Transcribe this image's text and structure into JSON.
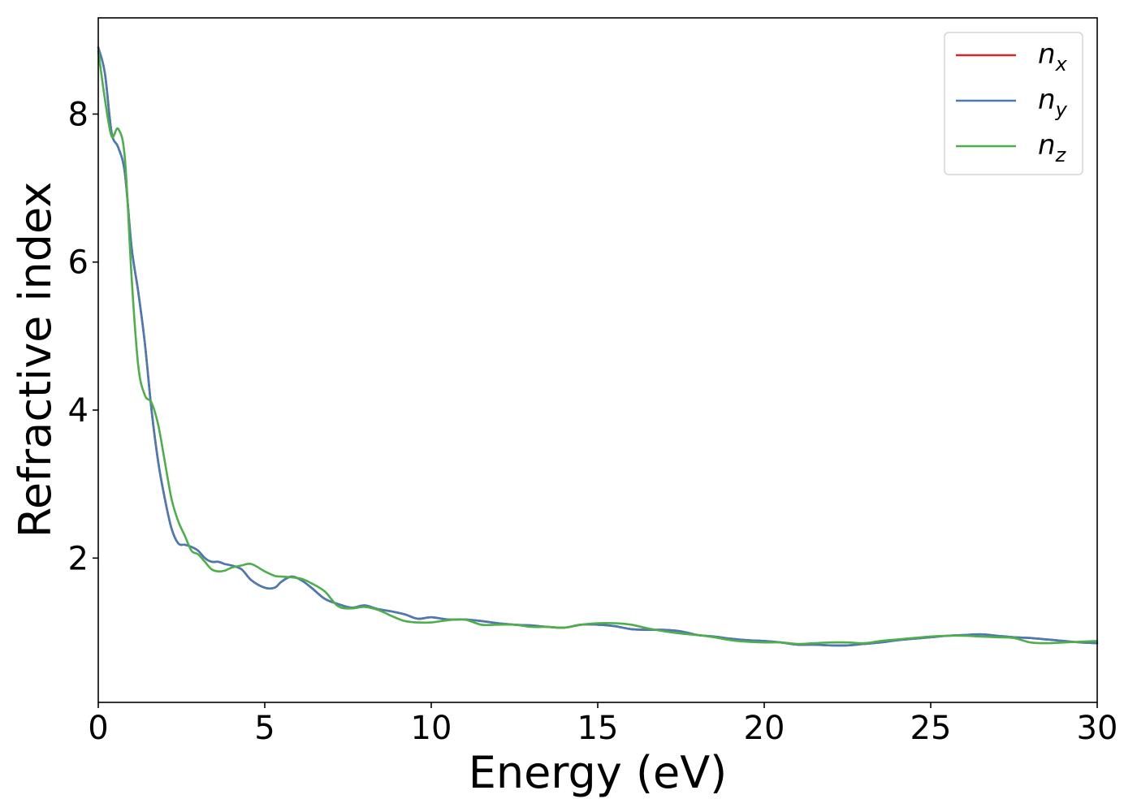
{
  "chart_data": {
    "type": "line",
    "xlabel": "Energy (eV)",
    "ylabel": "Refractive index",
    "xlim": [
      0,
      30
    ],
    "ylim": [
      0.05,
      9.3
    ],
    "xticks": [
      0,
      5,
      10,
      15,
      20,
      25,
      30
    ],
    "yticks": [
      2,
      4,
      6,
      8
    ],
    "grid": false,
    "legend_position": "top-right",
    "series": [
      {
        "name": "n_x",
        "legend_base": "n",
        "legend_sub": "x",
        "color": "#d62728",
        "x": [
          0,
          0.2,
          0.4,
          0.6,
          0.8,
          1.0,
          1.2,
          1.4,
          1.6,
          1.8,
          2.0,
          2.2,
          2.4,
          2.6,
          2.8,
          3.0,
          3.2,
          3.4,
          3.6,
          3.8,
          4.0,
          4.3,
          4.6,
          5.0,
          5.3,
          5.5,
          5.8,
          6.1,
          6.4,
          6.8,
          7.2,
          7.6,
          8.0,
          8.4,
          8.8,
          9.2,
          9.6,
          10.0,
          10.5,
          11.0,
          11.5,
          12.0,
          12.5,
          13.0,
          13.5,
          14.0,
          14.5,
          15.0,
          15.5,
          16.0,
          16.5,
          17.0,
          17.5,
          18.0,
          18.5,
          19.0,
          19.5,
          20.0,
          20.5,
          21.0,
          21.5,
          22.0,
          22.5,
          23.0,
          23.5,
          24.0,
          24.5,
          25.0,
          25.5,
          26.0,
          26.5,
          27.0,
          27.5,
          28.0,
          28.5,
          29.0,
          29.5,
          30.0
        ],
        "y": [
          8.9,
          8.55,
          7.75,
          7.55,
          7.2,
          6.2,
          5.6,
          4.9,
          4.0,
          3.3,
          2.8,
          2.4,
          2.2,
          2.18,
          2.15,
          2.1,
          2.0,
          1.95,
          1.95,
          1.92,
          1.9,
          1.85,
          1.7,
          1.6,
          1.6,
          1.68,
          1.75,
          1.7,
          1.6,
          1.45,
          1.38,
          1.33,
          1.36,
          1.31,
          1.28,
          1.24,
          1.18,
          1.2,
          1.17,
          1.17,
          1.15,
          1.12,
          1.1,
          1.09,
          1.07,
          1.06,
          1.1,
          1.1,
          1.08,
          1.04,
          1.03,
          1.03,
          1.01,
          0.96,
          0.94,
          0.91,
          0.89,
          0.88,
          0.86,
          0.83,
          0.83,
          0.82,
          0.82,
          0.84,
          0.86,
          0.89,
          0.91,
          0.93,
          0.95,
          0.96,
          0.97,
          0.95,
          0.93,
          0.92,
          0.9,
          0.88,
          0.86,
          0.85
        ]
      },
      {
        "name": "n_y",
        "legend_base": "n",
        "legend_sub": "y",
        "color": "#4a7ab5",
        "x": [
          0,
          0.2,
          0.4,
          0.6,
          0.8,
          1.0,
          1.2,
          1.4,
          1.6,
          1.8,
          2.0,
          2.2,
          2.4,
          2.6,
          2.8,
          3.0,
          3.2,
          3.4,
          3.6,
          3.8,
          4.0,
          4.3,
          4.6,
          5.0,
          5.3,
          5.5,
          5.8,
          6.1,
          6.4,
          6.8,
          7.2,
          7.6,
          8.0,
          8.4,
          8.8,
          9.2,
          9.6,
          10.0,
          10.5,
          11.0,
          11.5,
          12.0,
          12.5,
          13.0,
          13.5,
          14.0,
          14.5,
          15.0,
          15.5,
          16.0,
          16.5,
          17.0,
          17.5,
          18.0,
          18.5,
          19.0,
          19.5,
          20.0,
          20.5,
          21.0,
          21.5,
          22.0,
          22.5,
          23.0,
          23.5,
          24.0,
          24.5,
          25.0,
          25.5,
          26.0,
          26.5,
          27.0,
          27.5,
          28.0,
          28.5,
          29.0,
          29.5,
          30.0
        ],
        "y": [
          8.9,
          8.55,
          7.75,
          7.55,
          7.2,
          6.2,
          5.6,
          4.9,
          4.0,
          3.3,
          2.8,
          2.4,
          2.2,
          2.18,
          2.15,
          2.1,
          2.0,
          1.95,
          1.95,
          1.92,
          1.9,
          1.85,
          1.7,
          1.6,
          1.6,
          1.68,
          1.75,
          1.7,
          1.6,
          1.45,
          1.38,
          1.33,
          1.36,
          1.31,
          1.28,
          1.24,
          1.18,
          1.2,
          1.17,
          1.17,
          1.15,
          1.12,
          1.1,
          1.09,
          1.07,
          1.06,
          1.1,
          1.1,
          1.08,
          1.04,
          1.03,
          1.03,
          1.01,
          0.96,
          0.94,
          0.91,
          0.89,
          0.88,
          0.86,
          0.83,
          0.83,
          0.82,
          0.82,
          0.84,
          0.86,
          0.89,
          0.91,
          0.93,
          0.95,
          0.96,
          0.97,
          0.95,
          0.93,
          0.92,
          0.9,
          0.88,
          0.86,
          0.85
        ]
      },
      {
        "name": "n_z",
        "legend_base": "n",
        "legend_sub": "z",
        "color": "#4daf4a",
        "x": [
          0,
          0.2,
          0.4,
          0.6,
          0.8,
          1.0,
          1.2,
          1.4,
          1.6,
          1.8,
          2.0,
          2.2,
          2.4,
          2.6,
          2.8,
          3.0,
          3.2,
          3.4,
          3.6,
          3.8,
          4.0,
          4.3,
          4.6,
          5.0,
          5.3,
          5.5,
          5.8,
          6.1,
          6.4,
          6.8,
          7.2,
          7.6,
          8.0,
          8.4,
          8.8,
          9.2,
          9.6,
          10.0,
          10.5,
          11.0,
          11.5,
          12.0,
          12.5,
          13.0,
          13.5,
          14.0,
          14.5,
          15.0,
          15.5,
          16.0,
          16.5,
          17.0,
          17.5,
          18.0,
          18.5,
          19.0,
          19.5,
          20.0,
          20.5,
          21.0,
          21.5,
          22.0,
          22.5,
          23.0,
          23.5,
          24.0,
          24.5,
          25.0,
          25.5,
          26.0,
          26.5,
          27.0,
          27.5,
          28.0,
          28.5,
          29.0,
          29.5,
          30.0
        ],
        "y": [
          8.85,
          8.2,
          7.7,
          7.8,
          7.4,
          5.8,
          4.6,
          4.2,
          4.1,
          3.8,
          3.3,
          2.8,
          2.5,
          2.3,
          2.1,
          2.05,
          1.95,
          1.85,
          1.82,
          1.83,
          1.87,
          1.9,
          1.92,
          1.82,
          1.76,
          1.75,
          1.74,
          1.72,
          1.66,
          1.55,
          1.35,
          1.32,
          1.34,
          1.3,
          1.22,
          1.15,
          1.13,
          1.13,
          1.16,
          1.17,
          1.1,
          1.1,
          1.1,
          1.07,
          1.07,
          1.06,
          1.1,
          1.12,
          1.12,
          1.1,
          1.05,
          1.01,
          0.98,
          0.96,
          0.93,
          0.89,
          0.87,
          0.86,
          0.86,
          0.84,
          0.85,
          0.86,
          0.86,
          0.85,
          0.88,
          0.9,
          0.92,
          0.94,
          0.95,
          0.95,
          0.94,
          0.93,
          0.92,
          0.86,
          0.85,
          0.86,
          0.87,
          0.88
        ]
      }
    ]
  }
}
